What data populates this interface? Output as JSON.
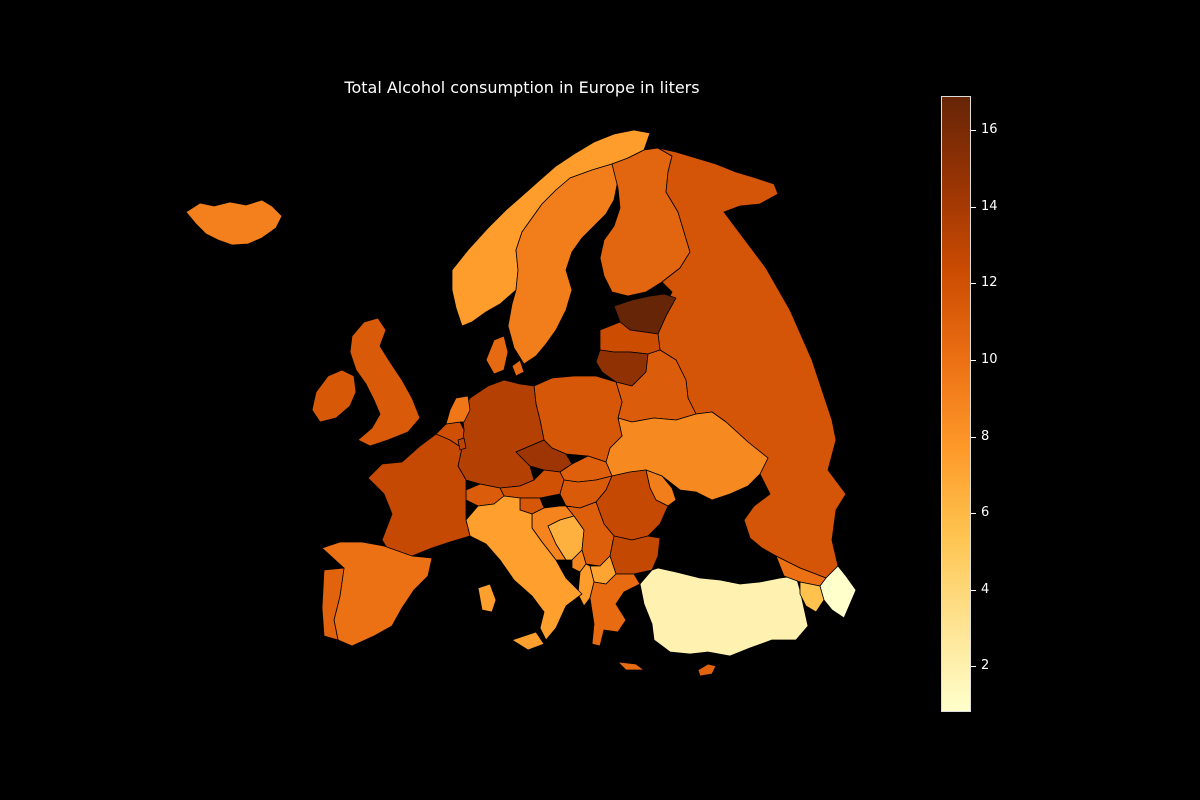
{
  "title": "Total Alcohol consumption in Europe in liters",
  "colorbar": {
    "min": 0.8,
    "max": 16.9,
    "ticks": [
      {
        "value": 2,
        "label": "2"
      },
      {
        "value": 4,
        "label": "4"
      },
      {
        "value": 6,
        "label": "6"
      },
      {
        "value": 8,
        "label": "8"
      },
      {
        "value": 10,
        "label": "10"
      },
      {
        "value": 12,
        "label": "12"
      },
      {
        "value": 14,
        "label": "14"
      },
      {
        "value": 16,
        "label": "16"
      }
    ],
    "colormap": [
      "#ffffcc",
      "#fee391",
      "#fec44f",
      "#fe9929",
      "#ec7014",
      "#cc4c02",
      "#993404",
      "#662506"
    ]
  },
  "regions": [
    {
      "name": "Iceland",
      "value": 9.1
    },
    {
      "name": "Norway",
      "value": 7.5
    },
    {
      "name": "Sweden",
      "value": 9.2
    },
    {
      "name": "Finland",
      "value": 10.7
    },
    {
      "name": "Estonia",
      "value": 16.9
    },
    {
      "name": "Latvia",
      "value": 12.3
    },
    {
      "name": "Lithuania",
      "value": 15.0
    },
    {
      "name": "Belarus",
      "value": 11.2
    },
    {
      "name": "Russia",
      "value": 11.7
    },
    {
      "name": "Ukraine",
      "value": 8.6
    },
    {
      "name": "Poland",
      "value": 11.6
    },
    {
      "name": "Germany",
      "value": 13.4
    },
    {
      "name": "Czechia",
      "value": 14.4
    },
    {
      "name": "Denmark",
      "value": 10.4
    },
    {
      "name": "United Kingdom",
      "value": 11.4
    },
    {
      "name": "Ireland",
      "value": 11.5
    },
    {
      "name": "France",
      "value": 12.6
    },
    {
      "name": "Spain",
      "value": 10.0
    },
    {
      "name": "Portugal",
      "value": 10.8
    },
    {
      "name": "Italy",
      "value": 7.4
    },
    {
      "name": "Switzerland",
      "value": 11.2
    },
    {
      "name": "Austria",
      "value": 12.0
    },
    {
      "name": "Hungary",
      "value": 11.4
    },
    {
      "name": "Slovakia",
      "value": 11.0
    },
    {
      "name": "Romania",
      "value": 12.6
    },
    {
      "name": "Bulgaria",
      "value": 12.7
    },
    {
      "name": "Greece",
      "value": 10.3
    },
    {
      "name": "Serbia",
      "value": 11.1
    },
    {
      "name": "Croatia",
      "value": 8.9
    },
    {
      "name": "Bosnia and Herzegovina",
      "value": 6.4
    },
    {
      "name": "Slovenia",
      "value": 11.6
    },
    {
      "name": "North Macedonia",
      "value": 7.1
    },
    {
      "name": "Albania",
      "value": 7.5
    },
    {
      "name": "Montenegro",
      "value": 8.7
    },
    {
      "name": "Moldova",
      "value": 9.2
    },
    {
      "name": "Netherlands",
      "value": 9.6
    },
    {
      "name": "Belgium",
      "value": 12.1
    },
    {
      "name": "Luxembourg",
      "value": 13.0
    },
    {
      "name": "Turkey",
      "value": 1.9
    },
    {
      "name": "Georgia",
      "value": 10.0
    },
    {
      "name": "Armenia",
      "value": 5.5
    },
    {
      "name": "Azerbaijan",
      "value": 0.8
    },
    {
      "name": "Cyprus",
      "value": 10.8
    }
  ]
}
